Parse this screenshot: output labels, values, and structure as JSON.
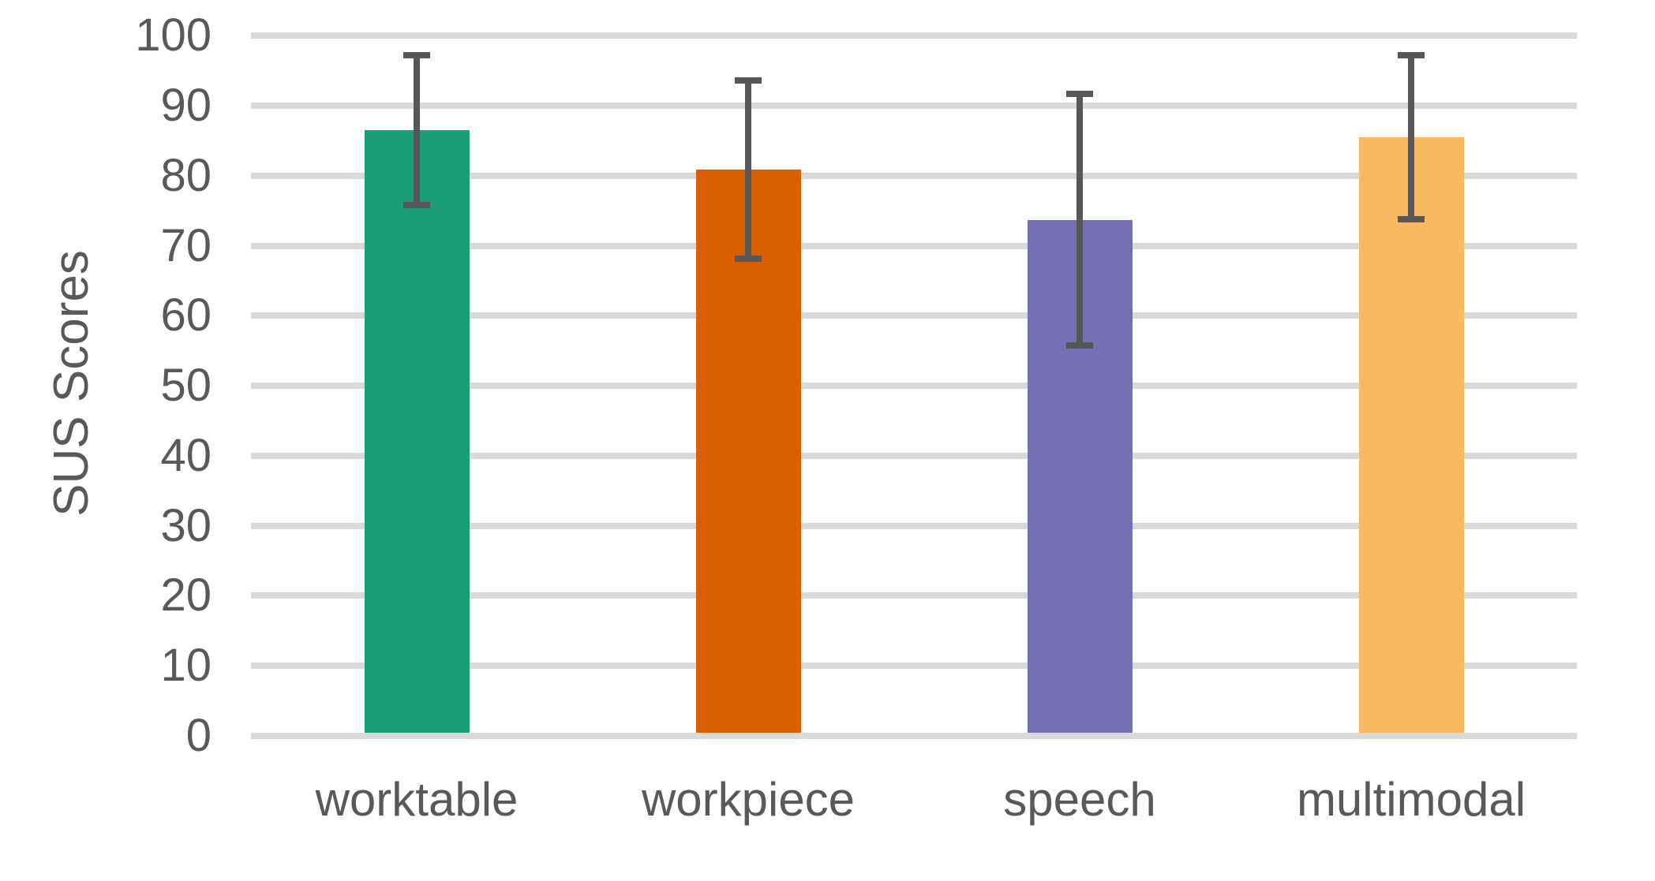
{
  "chart_data": {
    "type": "bar",
    "title": "",
    "xlabel": "",
    "ylabel": "SUS Scores",
    "categories": [
      "worktable",
      "workpiece",
      "speech",
      "multimodal"
    ],
    "values": [
      86.5,
      80.9,
      73.7,
      85.5
    ],
    "error_bars": true,
    "error_low": [
      75.8,
      68.2,
      55.7,
      73.8
    ],
    "error_high": [
      97.2,
      93.6,
      91.7,
      97.2
    ],
    "bar_colors": [
      "#1B9E77",
      "#D95F02",
      "#7570B3",
      "#FBB862"
    ],
    "ylim": [
      0,
      100
    ],
    "yticks": [
      0,
      10,
      20,
      30,
      40,
      50,
      60,
      70,
      80,
      90,
      100
    ],
    "grid": true,
    "legend": false
  },
  "colors": {
    "background": "#FFFFFF",
    "axis_text": "#595959",
    "gridline": "#D9D9D9",
    "error_bar": "#575757"
  }
}
